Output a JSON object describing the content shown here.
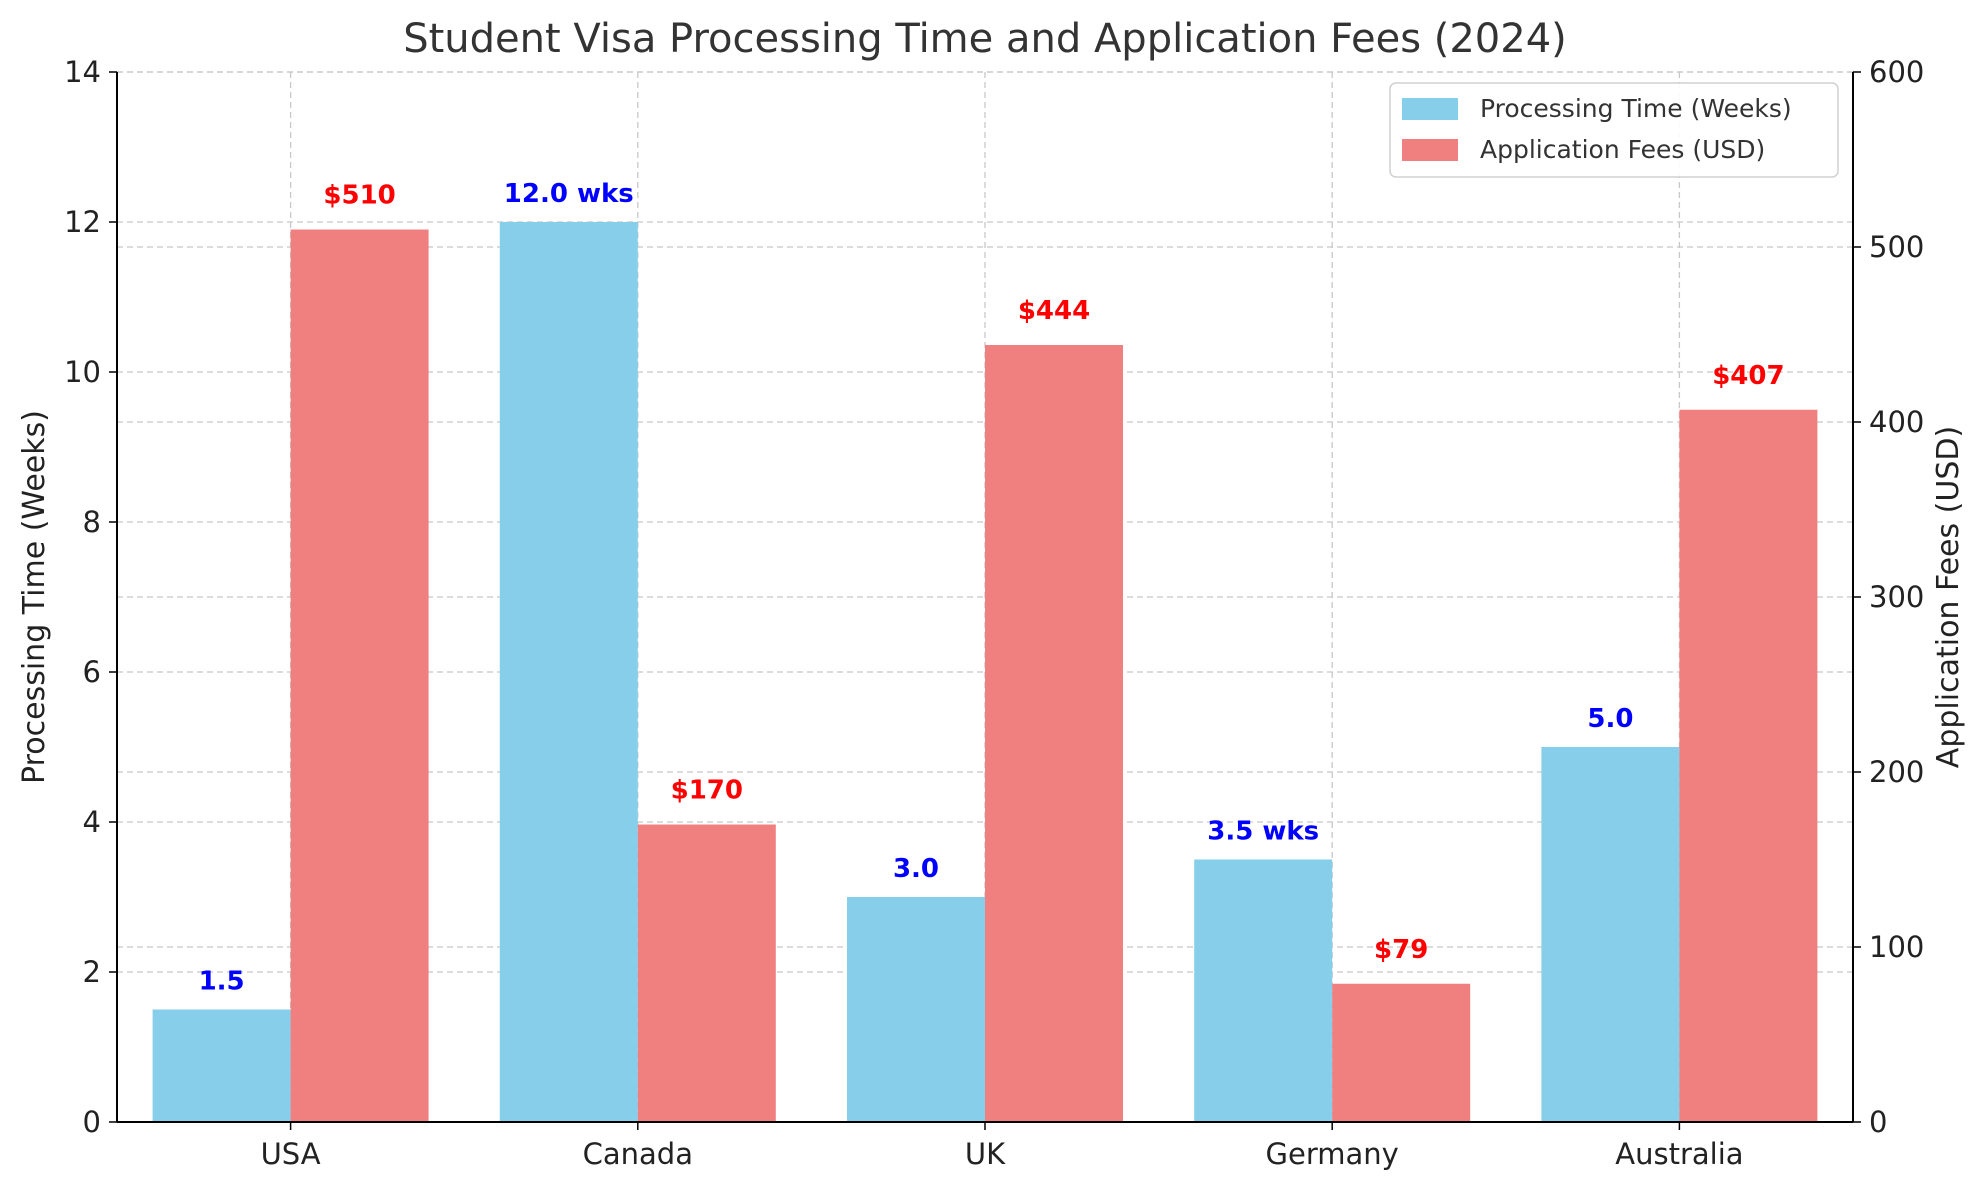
{
  "chart_data": {
    "type": "bar",
    "title": "Student Visa Processing Time and Application Fees (2024)",
    "categories": [
      "USA",
      "Canada",
      "UK",
      "Germany",
      "Australia"
    ],
    "y_left": {
      "label": "Processing Time (Weeks)",
      "range": [
        0,
        14
      ],
      "ticks": [
        0,
        2,
        4,
        6,
        8,
        10,
        12,
        14
      ]
    },
    "y_right": {
      "label": "Application Fees (USD)",
      "range": [
        0,
        600
      ],
      "ticks": [
        0,
        100,
        200,
        300,
        400,
        500,
        600
      ]
    },
    "series": [
      {
        "name": "Processing Time (Weeks)",
        "axis": "left",
        "color": "#87CEEB",
        "label_color": "#0000FF",
        "values": [
          1.5,
          12.0,
          3.0,
          3.5,
          5.0
        ],
        "value_labels": [
          "1.5",
          "12.0 wks",
          "3.0",
          "3.5 wks",
          "5.0"
        ]
      },
      {
        "name": "Application Fees (USD)",
        "axis": "right",
        "color": "#F08080",
        "label_color": "#FF0000",
        "values": [
          510,
          170,
          444,
          79,
          407
        ],
        "value_labels": [
          "$510",
          "$170",
          "$444",
          "$79",
          "$407"
        ]
      }
    ],
    "grid": true,
    "legend": "top-right"
  }
}
